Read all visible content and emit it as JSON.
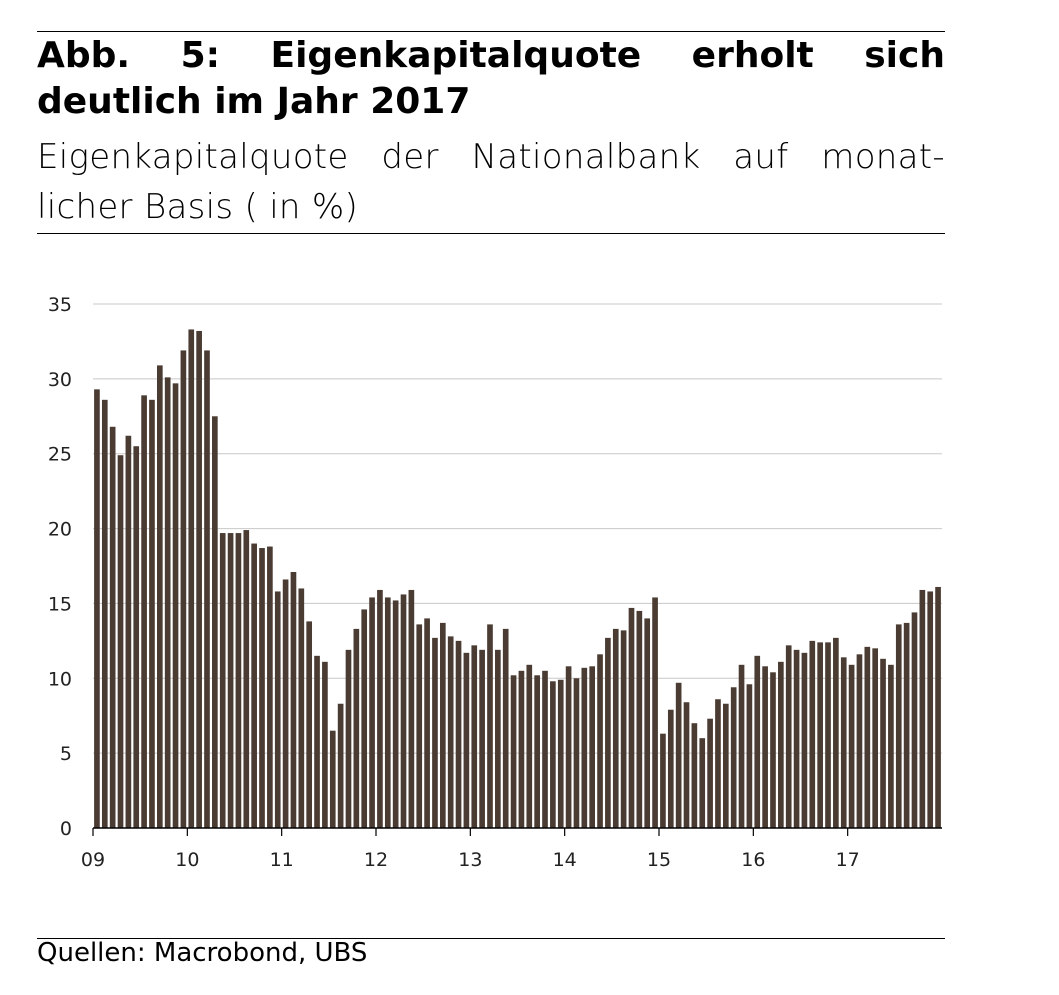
{
  "header": {
    "title": "Abb. 5: Eigenkapitalquote erholt sich deutlich im Jahr 2017",
    "subtitle": "Eigenkapitalquote der Nationalbank auf monat- licher Basis ( in %)"
  },
  "footer": {
    "source": "Quellen: Macrobond, UBS"
  },
  "colors": {
    "bar": "#4a3c32",
    "grid": "#c8c8c8",
    "axis": "#000000"
  },
  "chart_data": {
    "type": "bar",
    "title": "Abb. 5: Eigenkapitalquote erholt sich deutlich im Jahr 2017",
    "subtitle": "Eigenkapitalquote der Nationalbank auf monatlicher Basis ( in %)",
    "xlabel": "",
    "ylabel": "",
    "ylim": [
      0,
      35
    ],
    "yticks": [
      "0",
      "5",
      "10",
      "15",
      "20",
      "25",
      "30",
      "35"
    ],
    "xticks": [
      "09",
      "10",
      "11",
      "12",
      "13",
      "14",
      "15",
      "16",
      "17"
    ],
    "grid": true,
    "legend": "none",
    "start": "2009-01",
    "frequency": "monthly",
    "values": [
      29.3,
      28.6,
      26.8,
      24.9,
      26.2,
      25.5,
      28.9,
      28.6,
      30.9,
      30.1,
      29.7,
      31.9,
      33.3,
      33.2,
      31.9,
      27.5,
      19.7,
      19.7,
      19.7,
      19.9,
      19.0,
      18.7,
      18.8,
      15.8,
      16.6,
      17.1,
      16.0,
      13.8,
      11.5,
      11.1,
      6.5,
      8.3,
      11.9,
      13.3,
      14.6,
      15.4,
      15.9,
      15.4,
      15.2,
      15.6,
      15.9,
      13.6,
      14.0,
      12.7,
      13.7,
      12.8,
      12.5,
      11.7,
      12.2,
      11.9,
      13.6,
      11.9,
      13.3,
      10.2,
      10.5,
      10.9,
      10.2,
      10.5,
      9.8,
      9.9,
      10.8,
      10.0,
      10.7,
      10.8,
      11.6,
      12.7,
      13.3,
      13.2,
      14.7,
      14.5,
      14.0,
      15.4,
      6.3,
      7.9,
      9.7,
      8.4,
      7.0,
      6.0,
      7.3,
      8.6,
      8.3,
      9.4,
      10.9,
      9.6,
      11.5,
      10.8,
      10.4,
      11.1,
      12.2,
      11.9,
      11.7,
      12.5,
      12.4,
      12.4,
      12.7,
      11.4,
      10.9,
      11.6,
      12.1,
      12.0,
      11.3,
      10.9,
      13.6,
      13.7,
      14.4,
      15.9,
      15.8,
      16.1
    ]
  }
}
